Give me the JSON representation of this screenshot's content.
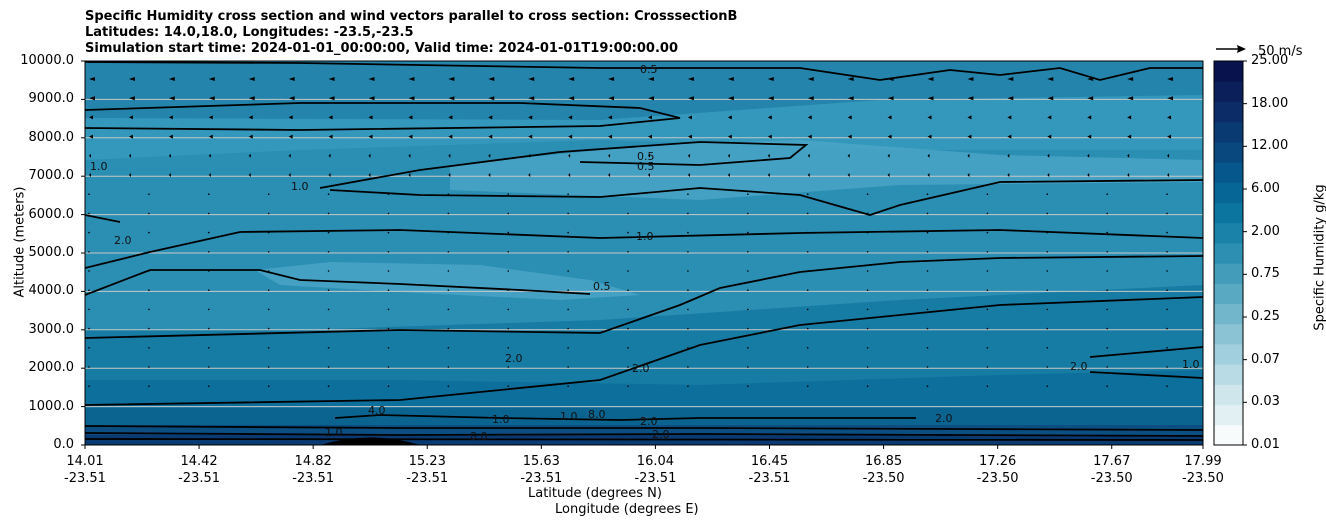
{
  "titles": {
    "line1": "Specific Humidity cross section and wind vectors parallel to cross section: CrosssectionB",
    "line2": "Latitudes: 14.0,18.0, Longitudes: -23.5,-23.5",
    "line3": "Simulation start time: 2024-01-01_00:00:00, Valid time: 2024-01-01T19:00:00.00"
  },
  "chart_data": {
    "type": "contour",
    "ylabel": "Altitude (meters)",
    "xlabel_line1": "Latitude (degrees N)",
    "xlabel_line2": "Longitude (degrees E)",
    "ylim": [
      0,
      10000
    ],
    "yticks": [
      "0.0",
      "1000.0",
      "2000.0",
      "3000.0",
      "4000.0",
      "5000.0",
      "6000.0",
      "7000.0",
      "8000.0",
      "9000.0",
      "10000.0"
    ],
    "xticks": [
      {
        "lat": "14.01",
        "lon": "-23.51"
      },
      {
        "lat": "14.42",
        "lon": "-23.51"
      },
      {
        "lat": "14.82",
        "lon": "-23.51"
      },
      {
        "lat": "15.23",
        "lon": "-23.51"
      },
      {
        "lat": "15.63",
        "lon": "-23.51"
      },
      {
        "lat": "16.04",
        "lon": "-23.51"
      },
      {
        "lat": "16.45",
        "lon": "-23.51"
      },
      {
        "lat": "16.85",
        "lon": "-23.50"
      },
      {
        "lat": "17.26",
        "lon": "-23.50"
      },
      {
        "lat": "17.67",
        "lon": "-23.50"
      },
      {
        "lat": "17.99",
        "lon": "-23.50"
      }
    ],
    "colorbar": {
      "label": "Specific Humidity g/kg",
      "ticks": [
        "0.01",
        "0.03",
        "0.07",
        "0.25",
        "0.75",
        "2.00",
        "6.00",
        "12.00",
        "18.00",
        "25.00"
      ],
      "colors": [
        "#f7fbfc",
        "#e3f0f3",
        "#cfe6ec",
        "#b9dbe5",
        "#a2cfdd",
        "#8bc3d4",
        "#72b6cc",
        "#5aa9c3",
        "#429cba",
        "#2d8fb1",
        "#1a82a8",
        "#0b749f",
        "#066696",
        "#06578b",
        "#08487f",
        "#0a3a72",
        "#0b2c66",
        "#0b1f5a",
        "#08134e"
      ]
    },
    "contour_labels": [
      "0.5",
      "0.5",
      "0.5",
      "1.0",
      "1.0",
      "1.0",
      "2.0",
      "2.0",
      "2.0",
      "2.0",
      "4.0",
      "1.0",
      "8.0",
      "8.0",
      "2.0",
      "1.0",
      "1.0",
      "0.5",
      "2.0",
      "1.0",
      "2.0"
    ],
    "quiver_key": "50 m/s",
    "grid": "horizontal"
  }
}
